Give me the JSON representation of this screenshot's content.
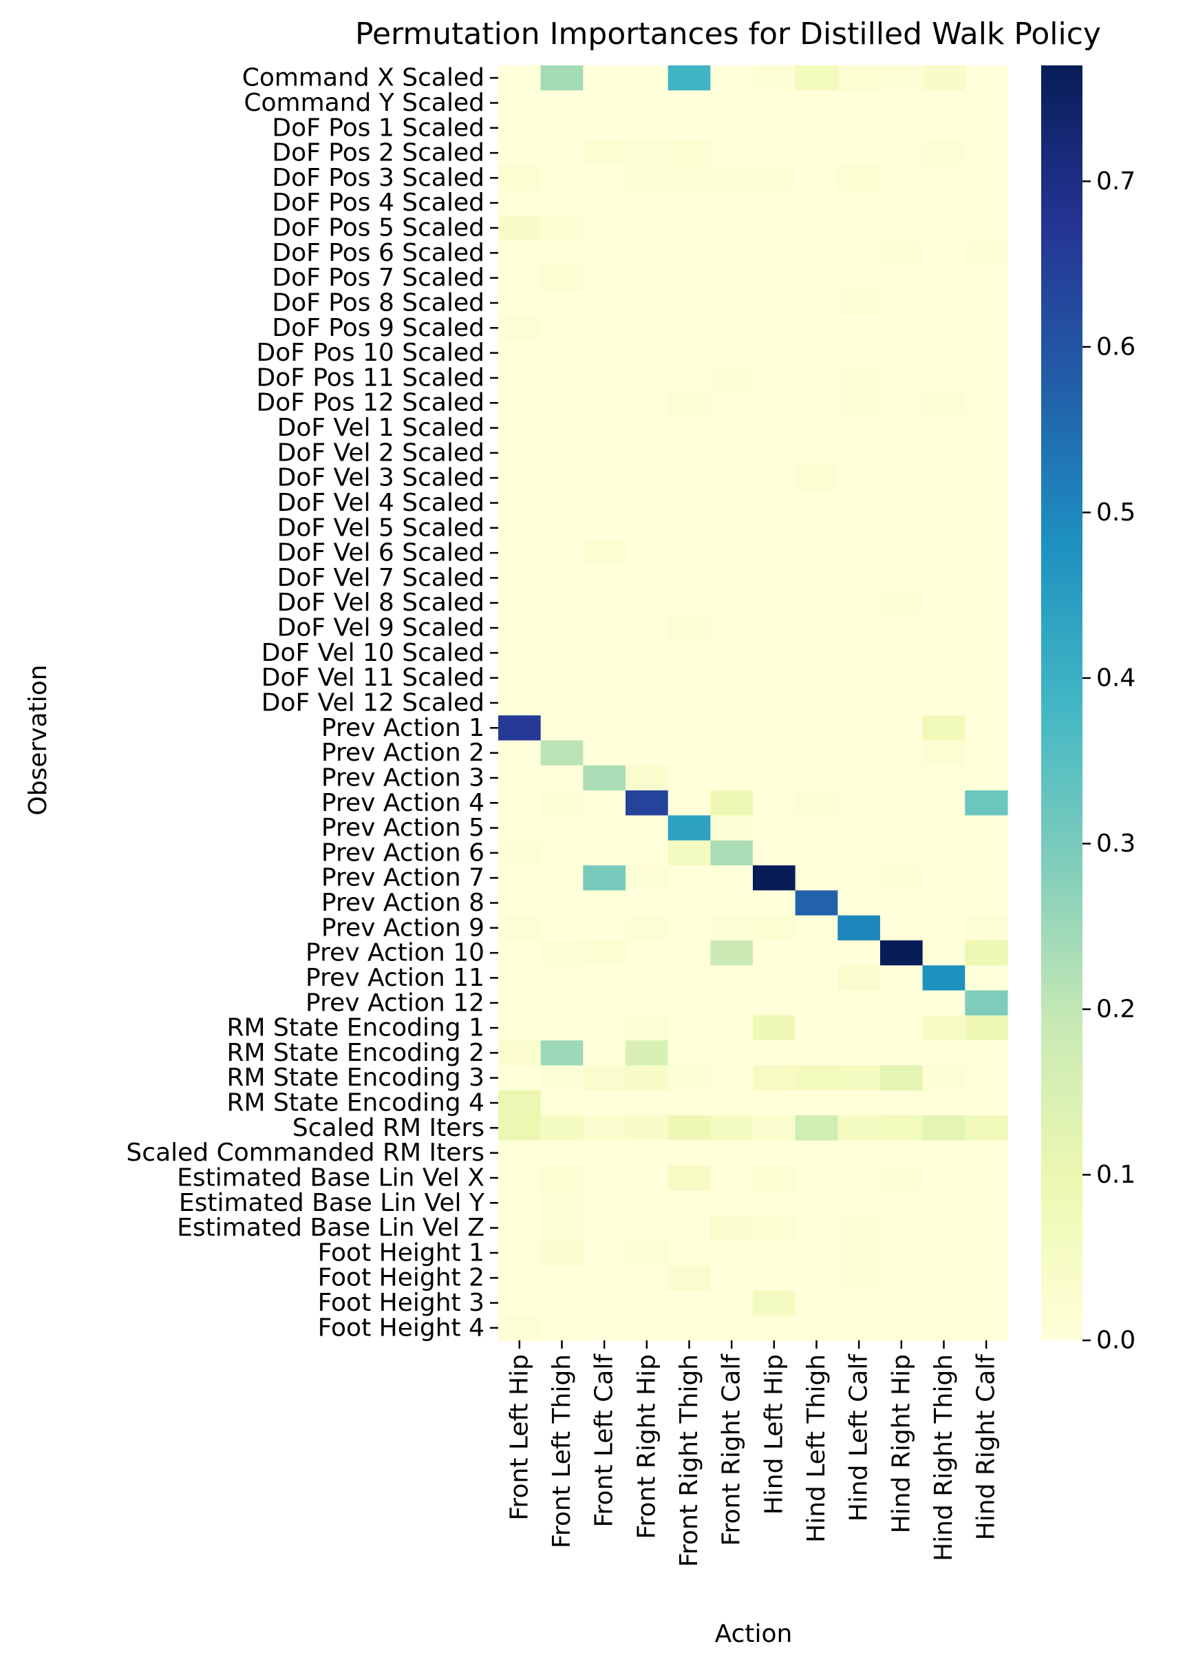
{
  "chart_data": {
    "type": "heatmap",
    "title": "Permutation Importances for Distilled Walk Policy",
    "xlabel": "Action",
    "ylabel": "Observation",
    "colormap": "YlGnBu",
    "colorbar": {
      "min": 0.0,
      "max": 0.77,
      "ticks": [
        0.0,
        0.1,
        0.2,
        0.3,
        0.4,
        0.5,
        0.6,
        0.7
      ],
      "tick_labels": [
        "0.0",
        "0.1",
        "0.2",
        "0.3",
        "0.4",
        "0.5",
        "0.6",
        "0.7"
      ]
    },
    "x_categories": [
      "Front Left Hip",
      "Front Left Thigh",
      "Front Left Calf",
      "Front Right Hip",
      "Front Right Thigh",
      "Front Right Calf",
      "Hind Left Hip",
      "Hind Left Thigh",
      "Hind Left Calf",
      "Hind Right Hip",
      "Hind Right Thigh",
      "Hind Right Calf"
    ],
    "y_categories": [
      "Command X Scaled",
      "Command Y Scaled",
      "DoF Pos 1 Scaled",
      "DoF Pos 2 Scaled",
      "DoF Pos 3 Scaled",
      "DoF Pos 4 Scaled",
      "DoF Pos 5 Scaled",
      "DoF Pos 6 Scaled",
      "DoF Pos 7 Scaled",
      "DoF Pos 8 Scaled",
      "DoF Pos 9 Scaled",
      "DoF Pos 10 Scaled",
      "DoF Pos 11 Scaled",
      "DoF Pos 12 Scaled",
      "DoF Vel 1 Scaled",
      "DoF Vel 2 Scaled",
      "DoF Vel 3 Scaled",
      "DoF Vel 4 Scaled",
      "DoF Vel 5 Scaled",
      "DoF Vel 6 Scaled",
      "DoF Vel 7 Scaled",
      "DoF Vel 8 Scaled",
      "DoF Vel 9 Scaled",
      "DoF Vel 10 Scaled",
      "DoF Vel 11 Scaled",
      "DoF Vel 12 Scaled",
      "Prev Action 1",
      "Prev Action 2",
      "Prev Action 3",
      "Prev Action 4",
      "Prev Action 5",
      "Prev Action 6",
      "Prev Action 7",
      "Prev Action 8",
      "Prev Action 9",
      "Prev Action 10",
      "Prev Action 11",
      "Prev Action 12",
      "RM State Encoding 1",
      "RM State Encoding 2",
      "RM State Encoding 3",
      "RM State Encoding 4",
      "Scaled RM Iters",
      "Scaled Commanded RM Iters",
      "Estimated Base Lin Vel X",
      "Estimated Base Lin Vel Y",
      "Estimated Base Lin Vel Z",
      "Foot Height 1",
      "Foot Height 2",
      "Foot Height 3",
      "Foot Height 4"
    ],
    "values": [
      [
        0.0,
        0.24,
        0.0,
        0.0,
        0.39,
        0.0,
        0.01,
        0.07,
        0.02,
        0.01,
        0.04,
        0.0
      ],
      [
        0.0,
        0.0,
        0.0,
        0.0,
        0.0,
        0.0,
        0.0,
        0.0,
        0.0,
        0.0,
        0.0,
        0.0
      ],
      [
        0.0,
        0.0,
        0.0,
        0.0,
        0.0,
        0.0,
        0.0,
        0.0,
        0.0,
        0.0,
        0.0,
        0.0
      ],
      [
        0.0,
        0.0,
        0.02,
        0.01,
        0.02,
        0.0,
        0.0,
        0.0,
        0.0,
        0.0,
        0.01,
        0.0
      ],
      [
        0.02,
        0.0,
        0.0,
        0.01,
        0.01,
        0.01,
        0.01,
        0.0,
        0.02,
        0.0,
        0.0,
        0.0
      ],
      [
        0.0,
        0.0,
        0.0,
        0.0,
        0.0,
        0.0,
        0.0,
        0.0,
        0.0,
        0.0,
        0.0,
        0.0
      ],
      [
        0.04,
        0.02,
        0.0,
        0.0,
        0.0,
        0.0,
        0.0,
        0.0,
        0.0,
        0.0,
        0.0,
        0.0
      ],
      [
        0.0,
        0.0,
        0.0,
        0.0,
        0.0,
        0.0,
        0.0,
        0.0,
        0.0,
        0.01,
        0.0,
        0.01
      ],
      [
        0.0,
        0.02,
        0.0,
        0.0,
        0.0,
        0.0,
        0.0,
        0.0,
        0.0,
        0.0,
        0.0,
        0.0
      ],
      [
        0.0,
        0.0,
        0.0,
        0.0,
        0.0,
        0.0,
        0.0,
        0.0,
        0.01,
        0.0,
        0.0,
        0.0
      ],
      [
        0.01,
        0.0,
        0.0,
        0.0,
        0.0,
        0.0,
        0.0,
        0.0,
        0.0,
        0.0,
        0.0,
        0.0
      ],
      [
        0.0,
        0.0,
        0.0,
        0.0,
        0.0,
        0.0,
        0.0,
        0.0,
        0.0,
        0.0,
        0.0,
        0.0
      ],
      [
        0.0,
        0.0,
        0.0,
        0.0,
        0.0,
        0.01,
        0.0,
        0.0,
        0.01,
        0.0,
        0.0,
        0.0
      ],
      [
        0.0,
        0.0,
        0.0,
        0.0,
        0.01,
        0.0,
        0.0,
        0.0,
        0.01,
        0.0,
        0.01,
        0.0
      ],
      [
        0.0,
        0.0,
        0.0,
        0.0,
        0.0,
        0.0,
        0.0,
        0.0,
        0.0,
        0.0,
        0.0,
        0.0
      ],
      [
        0.0,
        0.0,
        0.0,
        0.0,
        0.0,
        0.0,
        0.0,
        0.0,
        0.0,
        0.0,
        0.0,
        0.0
      ],
      [
        0.0,
        0.0,
        0.0,
        0.0,
        0.0,
        0.0,
        0.0,
        0.02,
        0.0,
        0.0,
        0.0,
        0.0
      ],
      [
        0.0,
        0.0,
        0.0,
        0.0,
        0.0,
        0.0,
        0.0,
        0.0,
        0.0,
        0.0,
        0.0,
        0.0
      ],
      [
        0.0,
        0.0,
        0.0,
        0.0,
        0.0,
        0.0,
        0.0,
        0.0,
        0.0,
        0.0,
        0.0,
        0.0
      ],
      [
        0.0,
        0.0,
        0.02,
        0.0,
        0.0,
        0.0,
        0.0,
        0.0,
        0.0,
        0.0,
        0.0,
        0.0
      ],
      [
        0.0,
        0.0,
        0.0,
        0.0,
        0.0,
        0.0,
        0.0,
        0.0,
        0.0,
        0.0,
        0.0,
        0.0
      ],
      [
        0.0,
        0.0,
        0.0,
        0.0,
        0.0,
        0.0,
        0.0,
        0.0,
        0.0,
        0.01,
        0.0,
        0.0
      ],
      [
        0.0,
        0.0,
        0.0,
        0.0,
        0.01,
        0.0,
        0.0,
        0.0,
        0.0,
        0.0,
        0.0,
        0.0
      ],
      [
        0.0,
        0.0,
        0.0,
        0.0,
        0.0,
        0.0,
        0.0,
        0.0,
        0.0,
        0.0,
        0.0,
        0.0
      ],
      [
        0.0,
        0.0,
        0.0,
        0.0,
        0.0,
        0.0,
        0.0,
        0.0,
        0.0,
        0.0,
        0.0,
        0.0
      ],
      [
        0.0,
        0.0,
        0.0,
        0.0,
        0.0,
        0.0,
        0.0,
        0.0,
        0.0,
        0.0,
        0.0,
        0.0
      ],
      [
        0.66,
        0.0,
        0.0,
        0.0,
        0.0,
        0.0,
        0.0,
        0.0,
        0.0,
        0.0,
        0.08,
        0.0
      ],
      [
        0.0,
        0.21,
        0.0,
        0.0,
        0.0,
        0.0,
        0.0,
        0.0,
        0.0,
        0.0,
        0.02,
        0.0
      ],
      [
        0.0,
        0.0,
        0.23,
        0.03,
        0.0,
        0.0,
        0.0,
        0.0,
        0.0,
        0.0,
        0.0,
        0.0
      ],
      [
        0.0,
        0.01,
        0.0,
        0.64,
        0.0,
        0.09,
        0.0,
        0.01,
        0.0,
        0.0,
        0.0,
        0.32
      ],
      [
        0.0,
        0.0,
        0.0,
        0.0,
        0.44,
        0.01,
        0.0,
        0.0,
        0.0,
        0.0,
        0.0,
        0.0
      ],
      [
        0.01,
        0.0,
        0.0,
        0.0,
        0.06,
        0.23,
        0.0,
        0.0,
        0.0,
        0.0,
        0.0,
        0.0
      ],
      [
        0.0,
        0.0,
        0.3,
        0.01,
        0.0,
        0.0,
        0.77,
        0.0,
        0.0,
        0.01,
        0.0,
        0.0
      ],
      [
        0.0,
        0.0,
        0.0,
        0.0,
        0.0,
        0.0,
        0.0,
        0.57,
        0.0,
        0.0,
        0.0,
        0.0
      ],
      [
        0.01,
        0.0,
        0.0,
        0.01,
        0.0,
        0.01,
        0.02,
        0.0,
        0.5,
        0.0,
        0.0,
        0.01
      ],
      [
        0.0,
        0.01,
        0.02,
        0.0,
        0.0,
        0.18,
        0.0,
        0.0,
        0.0,
        0.77,
        0.0,
        0.1
      ],
      [
        0.0,
        0.0,
        0.0,
        0.0,
        0.0,
        0.0,
        0.0,
        0.0,
        0.03,
        0.0,
        0.48,
        0.0
      ],
      [
        0.0,
        0.0,
        0.0,
        0.0,
        0.0,
        0.0,
        0.0,
        0.0,
        0.0,
        0.0,
        0.0,
        0.29
      ],
      [
        0.0,
        0.0,
        0.0,
        0.01,
        0.0,
        0.0,
        0.09,
        0.0,
        0.0,
        0.0,
        0.05,
        0.09
      ],
      [
        0.03,
        0.25,
        0.0,
        0.15,
        0.0,
        0.0,
        0.0,
        0.0,
        0.0,
        0.0,
        0.0,
        0.0
      ],
      [
        0.0,
        0.01,
        0.03,
        0.04,
        0.01,
        0.0,
        0.05,
        0.07,
        0.06,
        0.12,
        0.01,
        0.0
      ],
      [
        0.1,
        0.0,
        0.0,
        0.0,
        0.0,
        0.0,
        0.0,
        0.0,
        0.0,
        0.0,
        0.0,
        0.0
      ],
      [
        0.1,
        0.06,
        0.03,
        0.04,
        0.09,
        0.06,
        0.03,
        0.17,
        0.06,
        0.07,
        0.12,
        0.08
      ],
      [
        0.0,
        0.0,
        0.0,
        0.0,
        0.0,
        0.0,
        0.0,
        0.0,
        0.0,
        0.0,
        0.0,
        0.0
      ],
      [
        0.0,
        0.02,
        0.0,
        0.0,
        0.05,
        0.0,
        0.02,
        0.0,
        0.0,
        0.01,
        0.0,
        0.0
      ],
      [
        0.0,
        0.01,
        0.0,
        0.0,
        0.0,
        0.0,
        0.0,
        0.0,
        0.0,
        0.0,
        0.0,
        0.0
      ],
      [
        0.0,
        0.01,
        0.0,
        0.0,
        0.0,
        0.03,
        0.02,
        0.0,
        0.01,
        0.0,
        0.0,
        0.0
      ],
      [
        0.0,
        0.03,
        0.0,
        0.01,
        0.0,
        0.0,
        0.0,
        0.0,
        0.01,
        0.0,
        0.0,
        0.0
      ],
      [
        0.0,
        0.0,
        0.0,
        0.0,
        0.03,
        0.0,
        0.0,
        0.0,
        0.01,
        0.0,
        0.0,
        0.0
      ],
      [
        0.0,
        0.0,
        0.0,
        0.0,
        0.0,
        0.0,
        0.06,
        0.0,
        0.0,
        0.0,
        0.0,
        0.0
      ],
      [
        0.01,
        0.0,
        0.0,
        0.0,
        0.0,
        0.0,
        0.0,
        0.0,
        0.0,
        0.0,
        0.0,
        0.0
      ]
    ]
  }
}
